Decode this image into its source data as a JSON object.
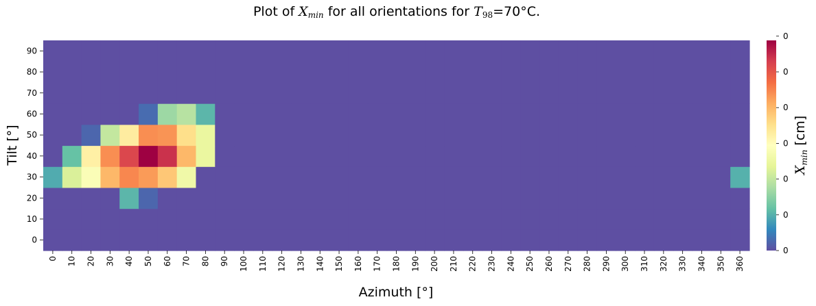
{
  "chart_data": {
    "type": "heatmap",
    "title": {
      "prefix": "Plot of ",
      "var": "X",
      "var_sub": "min",
      "middle": " for all orientations for ",
      "temp_var": "T",
      "temp_sub": "98",
      "suffix": "=70°C."
    },
    "xlabel": "Azimuth [°]",
    "ylabel": "Tilt [°]",
    "colorbar_label": {
      "var": "X",
      "sub": "min",
      "unit": " [cm]"
    },
    "x": [
      0,
      10,
      20,
      30,
      40,
      50,
      60,
      70,
      80,
      90,
      100,
      110,
      120,
      130,
      140,
      150,
      160,
      170,
      180,
      190,
      200,
      210,
      220,
      230,
      240,
      250,
      260,
      270,
      280,
      290,
      300,
      310,
      320,
      330,
      340,
      350,
      360
    ],
    "y": [
      0,
      10,
      20,
      30,
      40,
      50,
      60,
      70,
      80,
      90
    ],
    "colorbar_ticks": [
      "0",
      "0",
      "0",
      "0",
      "0",
      "0",
      "0"
    ],
    "colormap": "Spectral_r",
    "vmin": 0,
    "vmax": 1,
    "values": [
      [
        0,
        0,
        0,
        0,
        0,
        0,
        0,
        0,
        0,
        0,
        0,
        0,
        0,
        0,
        0,
        0,
        0,
        0,
        0,
        0,
        0,
        0,
        0,
        0,
        0,
        0,
        0,
        0,
        0,
        0,
        0,
        0,
        0,
        0,
        0,
        0,
        0
      ],
      [
        0,
        0,
        0,
        0,
        0,
        0,
        0,
        0,
        0,
        0,
        0,
        0,
        0,
        0,
        0,
        0,
        0,
        0,
        0,
        0,
        0,
        0,
        0,
        0,
        0,
        0,
        0,
        0,
        0,
        0,
        0,
        0,
        0,
        0,
        0,
        0,
        0
      ],
      [
        0,
        0,
        0,
        0,
        0.18,
        0.04,
        0,
        0,
        0,
        0,
        0,
        0,
        0,
        0,
        0,
        0,
        0,
        0,
        0,
        0,
        0,
        0,
        0,
        0,
        0,
        0,
        0,
        0,
        0,
        0,
        0,
        0,
        0,
        0,
        0,
        0,
        0
      ],
      [
        0.16,
        0.38,
        0.48,
        0.68,
        0.76,
        0.73,
        0.65,
        0.44,
        0,
        0,
        0,
        0,
        0,
        0,
        0,
        0,
        0,
        0,
        0,
        0,
        0,
        0,
        0,
        0,
        0,
        0,
        0,
        0,
        0,
        0,
        0,
        0,
        0,
        0,
        0,
        0,
        0.17
      ],
      [
        0,
        0.2,
        0.55,
        0.75,
        0.88,
        1.0,
        0.92,
        0.68,
        0.42,
        0,
        0,
        0,
        0,
        0,
        0,
        0,
        0,
        0,
        0,
        0,
        0,
        0,
        0,
        0,
        0,
        0,
        0,
        0,
        0,
        0,
        0,
        0,
        0,
        0,
        0,
        0,
        0
      ],
      [
        0,
        0,
        0.04,
        0.34,
        0.56,
        0.75,
        0.74,
        0.6,
        0.42,
        0,
        0,
        0,
        0,
        0,
        0,
        0,
        0,
        0,
        0,
        0,
        0,
        0,
        0,
        0,
        0,
        0,
        0,
        0,
        0,
        0,
        0,
        0,
        0,
        0,
        0,
        0,
        0
      ],
      [
        0,
        0,
        0,
        0,
        0,
        0.05,
        0.28,
        0.32,
        0.18,
        0,
        0,
        0,
        0,
        0,
        0,
        0,
        0,
        0,
        0,
        0,
        0,
        0,
        0,
        0,
        0,
        0,
        0,
        0,
        0,
        0,
        0,
        0,
        0,
        0,
        0,
        0,
        0
      ],
      [
        0,
        0,
        0,
        0,
        0,
        0,
        0,
        0,
        0,
        0,
        0,
        0,
        0,
        0,
        0,
        0,
        0,
        0,
        0,
        0,
        0,
        0,
        0,
        0,
        0,
        0,
        0,
        0,
        0,
        0,
        0,
        0,
        0,
        0,
        0,
        0,
        0
      ],
      [
        0,
        0,
        0,
        0,
        0,
        0,
        0,
        0,
        0,
        0,
        0,
        0,
        0,
        0,
        0,
        0,
        0,
        0,
        0,
        0,
        0,
        0,
        0,
        0,
        0,
        0,
        0,
        0,
        0,
        0,
        0,
        0,
        0,
        0,
        0,
        0,
        0
      ],
      [
        0,
        0,
        0,
        0,
        0,
        0,
        0,
        0,
        0,
        0,
        0,
        0,
        0,
        0,
        0,
        0,
        0,
        0,
        0,
        0,
        0,
        0,
        0,
        0,
        0,
        0,
        0,
        0,
        0,
        0,
        0,
        0,
        0,
        0,
        0,
        0,
        0
      ]
    ]
  }
}
